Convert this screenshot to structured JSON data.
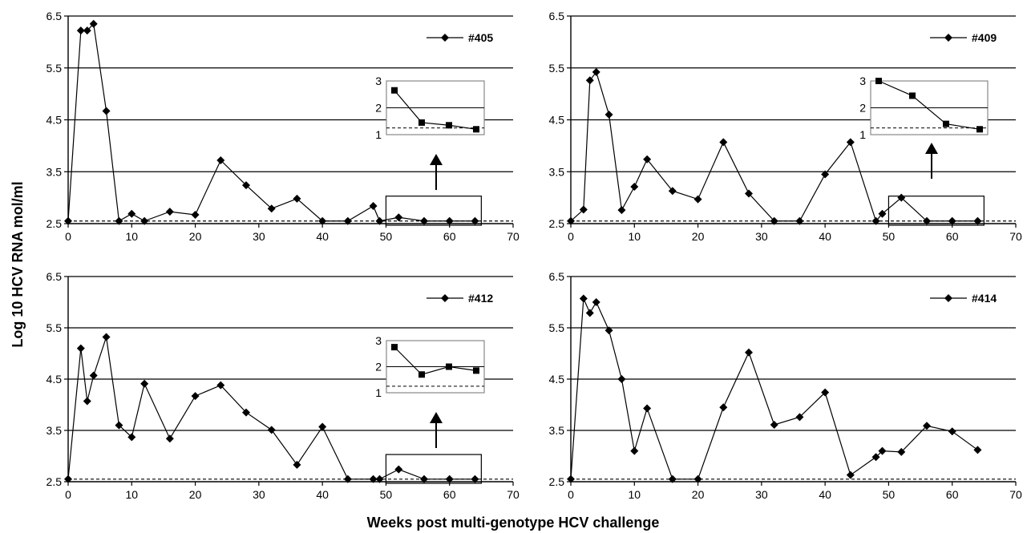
{
  "figure": {
    "ylabel": "Log  10 HCV RNA mol/ml",
    "xlabel": "Weeks post multi-genotype HCV challenge"
  },
  "chart_data": [
    {
      "type": "line",
      "series": [
        {
          "name": "#405",
          "x": [
            0,
            2,
            3,
            4,
            6,
            8,
            10,
            12,
            16,
            20,
            24,
            28,
            32,
            36,
            40,
            44,
            48,
            49,
            52,
            56,
            60,
            64
          ],
          "y": [
            2.55,
            6.22,
            6.22,
            6.35,
            4.67,
            2.55,
            2.69,
            2.55,
            2.73,
            2.67,
            3.72,
            3.24,
            2.79,
            2.98,
            2.55,
            2.55,
            2.84,
            2.55,
            2.62,
            2.55,
            2.55,
            2.55
          ]
        }
      ],
      "xlim": [
        0,
        70
      ],
      "ylim": [
        2.5,
        6.5
      ],
      "xticks": [
        0,
        10,
        20,
        30,
        40,
        50,
        60,
        70
      ],
      "yticks": [
        2.5,
        3.5,
        4.5,
        5.5,
        6.5
      ],
      "grid": true,
      "legend_position": "top-right",
      "detection_limit": 2.55,
      "highlight_x_range": [
        50,
        65
      ],
      "inset": {
        "values": [
          2.65,
          1.45,
          1.35,
          1.2
        ],
        "yticks": [
          1,
          2,
          3
        ],
        "ylim": [
          1,
          3
        ],
        "detection_limit": 1.25
      }
    },
    {
      "type": "line",
      "series": [
        {
          "name": "#409",
          "x": [
            0,
            2,
            3,
            4,
            6,
            8,
            10,
            12,
            16,
            20,
            24,
            28,
            32,
            36,
            40,
            44,
            48,
            49,
            52,
            56,
            60,
            64
          ],
          "y": [
            2.55,
            2.77,
            5.26,
            5.42,
            4.6,
            2.76,
            3.21,
            3.74,
            3.13,
            2.97,
            4.07,
            3.08,
            2.55,
            2.55,
            3.45,
            4.07,
            2.55,
            2.69,
            3.0,
            2.55,
            2.55,
            2.55
          ]
        }
      ],
      "xlim": [
        0,
        70
      ],
      "ylim": [
        2.5,
        6.5
      ],
      "xticks": [
        0,
        10,
        20,
        30,
        40,
        50,
        60,
        70
      ],
      "yticks": [
        2.5,
        3.5,
        4.5,
        5.5,
        6.5
      ],
      "grid": true,
      "legend_position": "top-right",
      "detection_limit": 2.55,
      "highlight_x_range": [
        50,
        65
      ],
      "inset": {
        "values": [
          3.0,
          2.45,
          1.4,
          1.2
        ],
        "yticks": [
          1,
          2,
          3
        ],
        "ylim": [
          1,
          3
        ],
        "detection_limit": 1.25
      }
    },
    {
      "type": "line",
      "series": [
        {
          "name": "#412",
          "x": [
            0,
            2,
            3,
            4,
            6,
            8,
            10,
            12,
            16,
            20,
            24,
            28,
            32,
            36,
            40,
            44,
            48,
            49,
            52,
            56,
            60,
            64
          ],
          "y": [
            2.55,
            5.1,
            4.07,
            4.57,
            5.32,
            3.6,
            3.37,
            4.41,
            3.34,
            4.17,
            4.38,
            3.85,
            3.51,
            2.83,
            3.57,
            2.55,
            2.55,
            2.55,
            2.74,
            2.55,
            2.55,
            2.55
          ]
        }
      ],
      "xlim": [
        0,
        70
      ],
      "ylim": [
        2.5,
        6.5
      ],
      "xticks": [
        0,
        10,
        20,
        30,
        40,
        50,
        60,
        70
      ],
      "yticks": [
        2.5,
        3.5,
        4.5,
        5.5,
        6.5
      ],
      "grid": true,
      "legend_position": "top-right",
      "detection_limit": 2.55,
      "highlight_x_range": [
        50,
        65
      ],
      "inset": {
        "values": [
          2.75,
          1.7,
          2.0,
          1.85
        ],
        "yticks": [
          1,
          2,
          3
        ],
        "ylim": [
          1,
          3
        ],
        "detection_limit": 1.25
      }
    },
    {
      "type": "line",
      "series": [
        {
          "name": "#414",
          "x": [
            0,
            2,
            3,
            4,
            6,
            8,
            10,
            12,
            16,
            20,
            24,
            28,
            32,
            36,
            40,
            44,
            48,
            49,
            52,
            56,
            60,
            64
          ],
          "y": [
            2.55,
            6.07,
            5.79,
            6.0,
            5.45,
            4.5,
            3.1,
            3.93,
            2.55,
            2.55,
            3.95,
            5.02,
            3.61,
            3.76,
            4.24,
            2.63,
            2.98,
            3.1,
            3.08,
            3.59,
            3.48,
            3.12
          ]
        }
      ],
      "xlim": [
        0,
        70
      ],
      "ylim": [
        2.5,
        6.5
      ],
      "xticks": [
        0,
        10,
        20,
        30,
        40,
        50,
        60,
        70
      ],
      "yticks": [
        2.5,
        3.5,
        4.5,
        5.5,
        6.5
      ],
      "grid": true,
      "legend_position": "top-right",
      "detection_limit": 2.55
    }
  ]
}
